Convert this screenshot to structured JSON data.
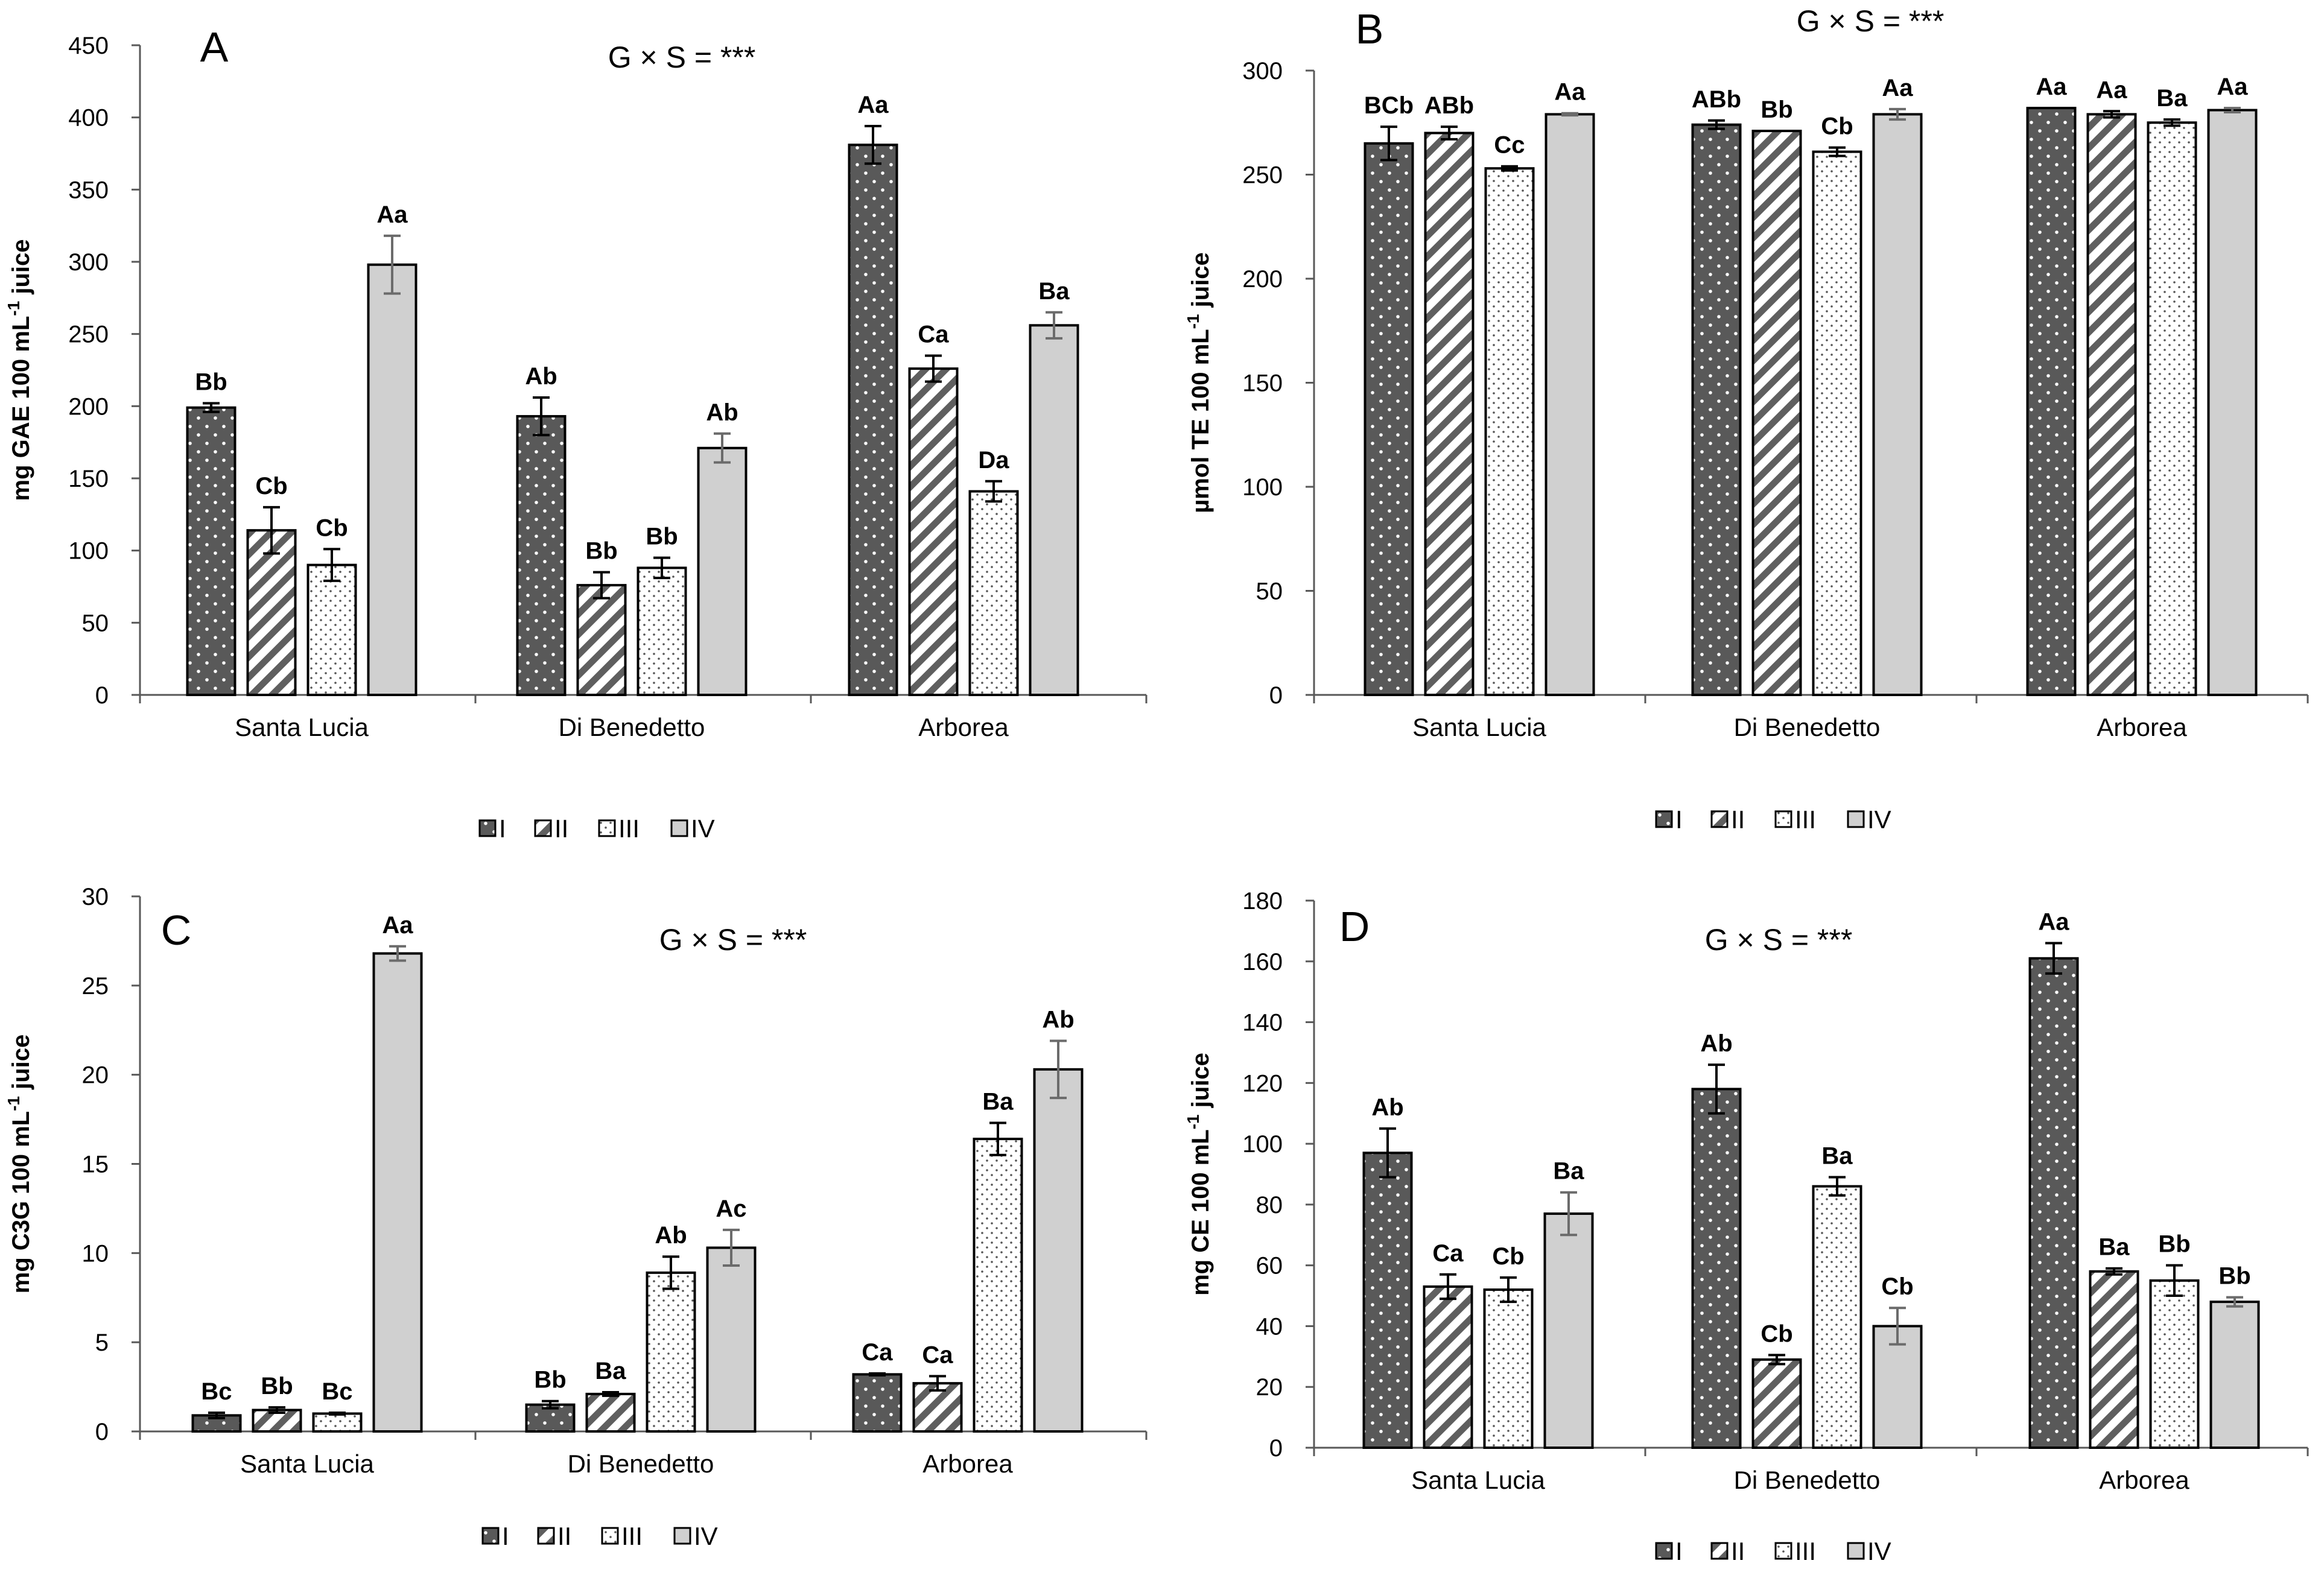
{
  "figure": {
    "legend": [
      {
        "key": "I",
        "label": "I"
      },
      {
        "key": "II",
        "label": "II"
      },
      {
        "key": "III",
        "label": "III"
      },
      {
        "key": "IV",
        "label": "IV"
      }
    ],
    "colors": {
      "I": "#595959",
      "IV": "#d0d0d0",
      "stroke": "#000000",
      "error_dark": "#000000",
      "error_light": "#6b6b6b"
    }
  },
  "chart_data": [
    {
      "type": "bar",
      "panel": "A",
      "title": "",
      "annotation": "G × S = ***",
      "ylabel": "mg GAE 100 mL-1 juice",
      "ylabel_main": "mg GAE 100 mL",
      "ylabel_sup": "-1",
      "ylabel_tail": " juice",
      "ylim": [
        0,
        450
      ],
      "yticks": [
        0,
        50,
        100,
        150,
        200,
        250,
        300,
        350,
        400,
        450
      ],
      "categories": [
        "Santa Lucia",
        "Di Benedetto",
        "Arborea"
      ],
      "series": [
        {
          "name": "I",
          "values": [
            199,
            193,
            381
          ],
          "errors": [
            3,
            13,
            13
          ],
          "labels": [
            "Bb",
            "Ab",
            "Aa"
          ]
        },
        {
          "name": "II",
          "values": [
            114,
            76,
            226
          ],
          "errors": [
            16,
            9,
            9
          ],
          "labels": [
            "Cb",
            "Bb",
            "Ca"
          ]
        },
        {
          "name": "III",
          "values": [
            90,
            88,
            141
          ],
          "errors": [
            11,
            7,
            7
          ],
          "labels": [
            "Cb",
            "Bb",
            "Da"
          ]
        },
        {
          "name": "IV",
          "values": [
            298,
            171,
            256
          ],
          "errors": [
            20,
            10,
            9
          ],
          "labels": [
            "Aa",
            "Ab",
            "Ba"
          ]
        }
      ]
    },
    {
      "type": "bar",
      "panel": "B",
      "title": "",
      "annotation": "G × S = ***",
      "ylabel": "µmol TE 100 mL-1 juice",
      "ylabel_main": "µmol TE 100 mL",
      "ylabel_sup": "-1",
      "ylabel_tail": " juice",
      "ylim": [
        0,
        300
      ],
      "yticks": [
        0,
        50,
        100,
        150,
        200,
        250,
        300
      ],
      "categories": [
        "Santa Lucia",
        "Di Benedetto",
        "Arborea"
      ],
      "series": [
        {
          "name": "I",
          "values": [
            265,
            274,
            282
          ],
          "errors": [
            8,
            2,
            0
          ],
          "labels": [
            "BCb",
            "ABb",
            "Aa"
          ]
        },
        {
          "name": "II",
          "values": [
            270,
            271,
            279
          ],
          "errors": [
            3,
            0,
            1.5
          ],
          "labels": [
            "ABb",
            "Bb",
            "Aa"
          ]
        },
        {
          "name": "III",
          "values": [
            253,
            261,
            275
          ],
          "errors": [
            1,
            2,
            1.5
          ],
          "labels": [
            "Cc",
            "Cb",
            "Ba"
          ]
        },
        {
          "name": "IV",
          "values": [
            279,
            279,
            281
          ],
          "errors": [
            0.5,
            2.5,
            1
          ],
          "labels": [
            "Aa",
            "Aa",
            "Aa"
          ]
        }
      ]
    },
    {
      "type": "bar",
      "panel": "C",
      "title": "",
      "annotation": "G × S = ***",
      "ylabel": "mg C3G 100 mL-1 juice",
      "ylabel_main": "mg C3G 100 mL",
      "ylabel_sup": "-1",
      "ylabel_tail": " juice",
      "ylim": [
        0,
        30
      ],
      "yticks": [
        0,
        5,
        10,
        15,
        20,
        25,
        30
      ],
      "categories": [
        "Santa Lucia",
        "Di Benedetto",
        "Arborea"
      ],
      "series": [
        {
          "name": "I",
          "values": [
            0.9,
            1.5,
            3.2
          ],
          "errors": [
            0.15,
            0.2,
            0.05
          ],
          "labels": [
            "Bc",
            "Bb",
            "Ca"
          ]
        },
        {
          "name": "II",
          "values": [
            1.2,
            2.1,
            2.7
          ],
          "errors": [
            0.15,
            0.1,
            0.4
          ],
          "labels": [
            "Bb",
            "Ba",
            "Ca"
          ]
        },
        {
          "name": "III",
          "values": [
            1.0,
            8.9,
            16.4
          ],
          "errors": [
            0.05,
            0.9,
            0.9
          ],
          "labels": [
            "Bc",
            "Ab",
            "Ba"
          ]
        },
        {
          "name": "IV",
          "values": [
            26.8,
            10.3,
            20.3
          ],
          "errors": [
            0.4,
            1.0,
            1.6
          ],
          "labels": [
            "Aa",
            "Ac",
            "Ab"
          ]
        }
      ]
    },
    {
      "type": "bar",
      "panel": "D",
      "title": "",
      "annotation": "G × S = ***",
      "ylabel": "mg CE 100 mL-1 juice",
      "ylabel_main": "mg CE 100 mL",
      "ylabel_sup": "-1",
      "ylabel_tail": " juice",
      "ylim": [
        0,
        180
      ],
      "yticks": [
        0,
        20,
        40,
        60,
        80,
        100,
        120,
        140,
        160,
        180
      ],
      "categories": [
        "Santa Lucia",
        "Di Benedetto",
        "Arborea"
      ],
      "series": [
        {
          "name": "I",
          "values": [
            97,
            118,
            161
          ],
          "errors": [
            8,
            8,
            5
          ],
          "labels": [
            "Ab",
            "Ab",
            "Aa"
          ]
        },
        {
          "name": "II",
          "values": [
            53,
            29,
            58
          ],
          "errors": [
            4,
            1.5,
            1
          ],
          "labels": [
            "Ca",
            "Cb",
            "Ba"
          ]
        },
        {
          "name": "III",
          "values": [
            52,
            86,
            55
          ],
          "errors": [
            4,
            3,
            5
          ],
          "labels": [
            "Cb",
            "Ba",
            "Bb"
          ]
        },
        {
          "name": "IV",
          "values": [
            77,
            40,
            48
          ],
          "errors": [
            7,
            6,
            1.5
          ],
          "labels": [
            "Ba",
            "Cb",
            "Bb"
          ]
        }
      ]
    }
  ]
}
